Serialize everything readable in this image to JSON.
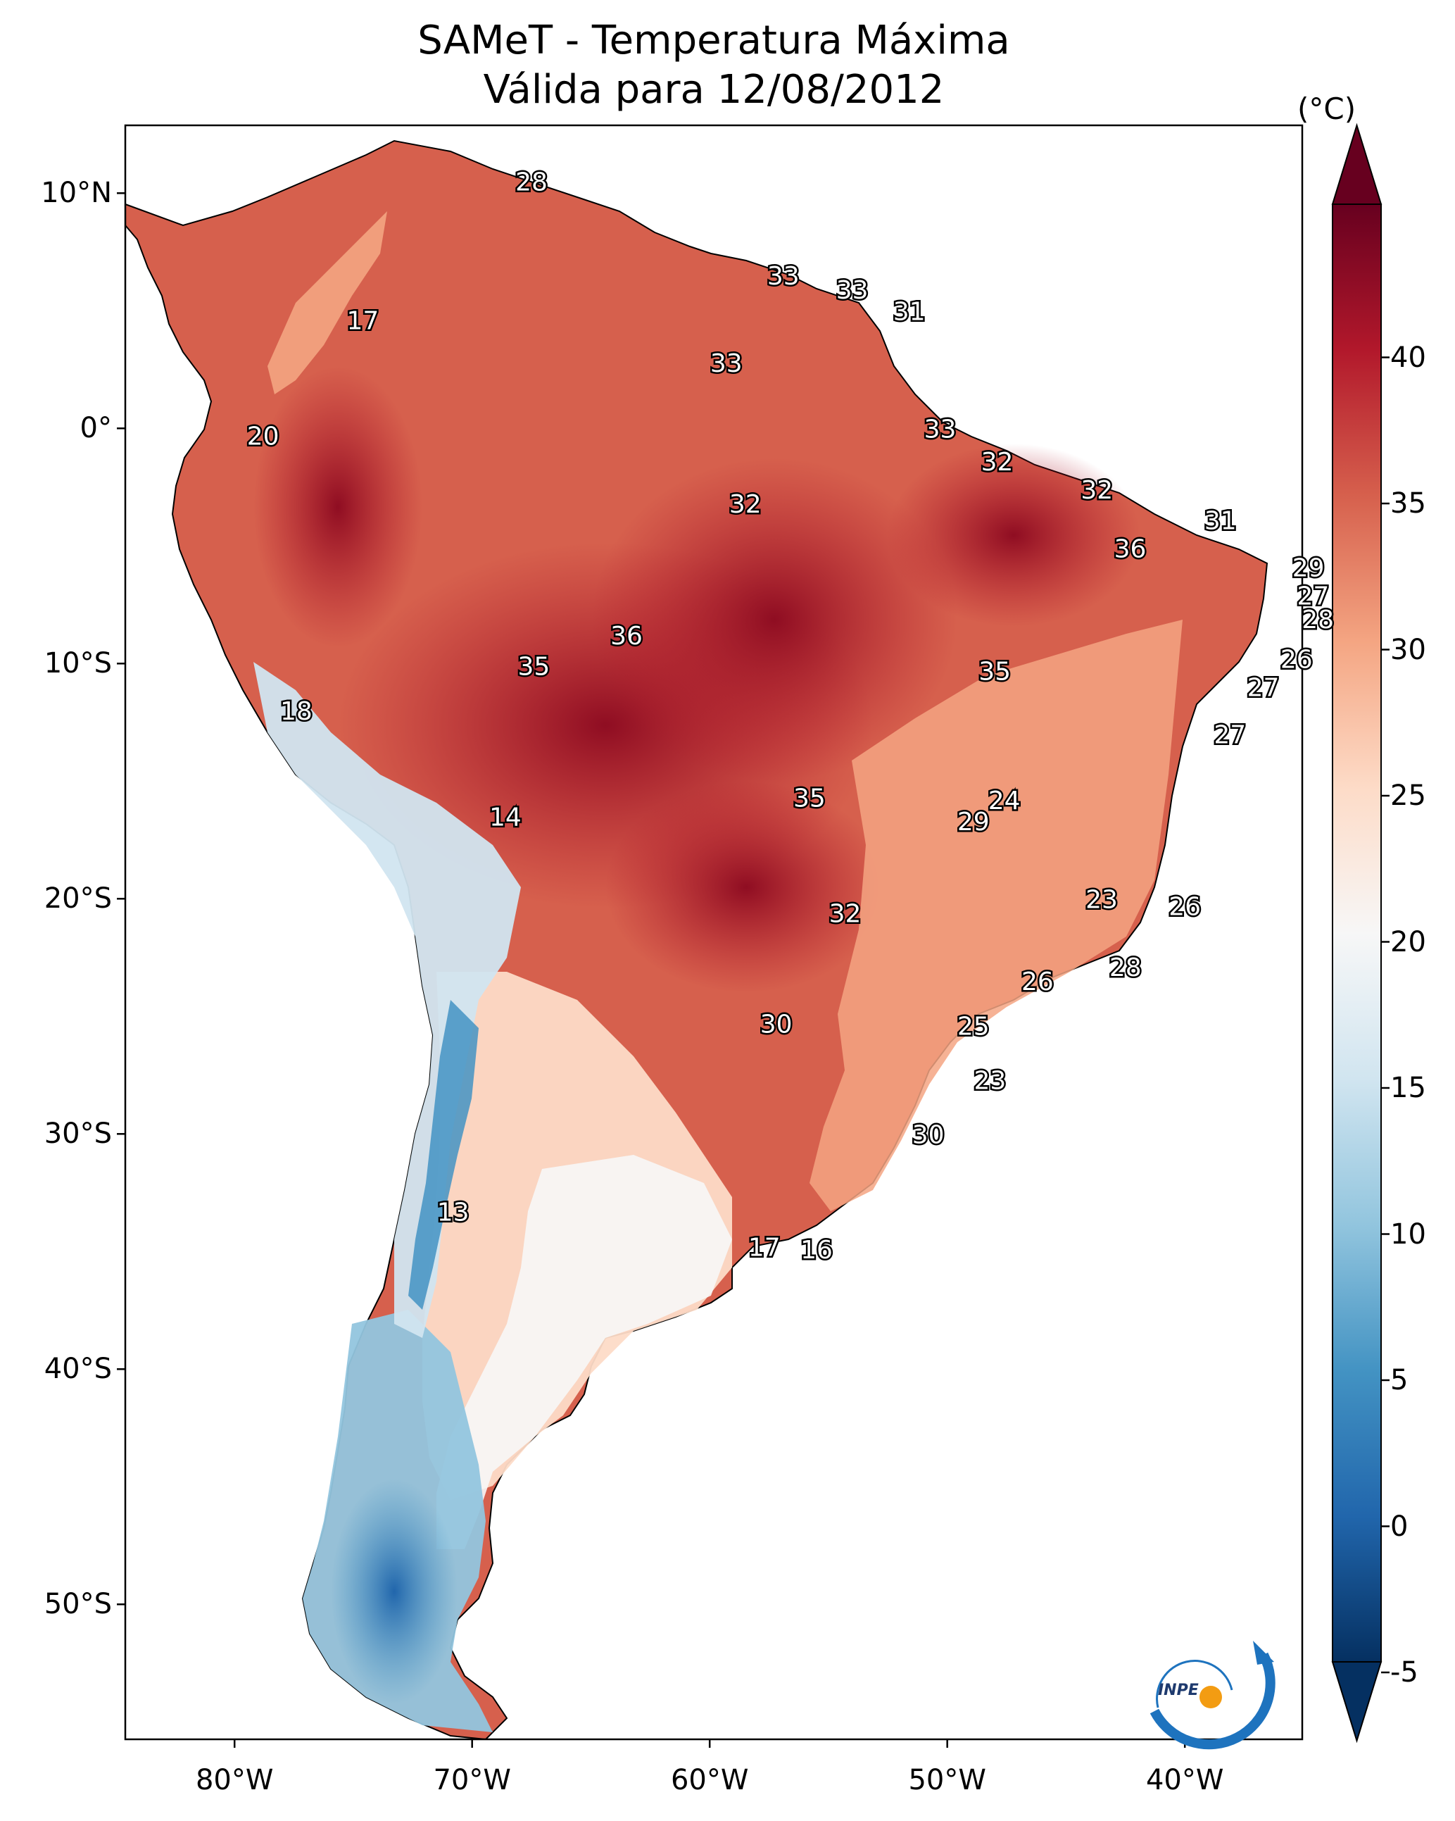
{
  "title": {
    "line1": "SAMeT - Temperatura Máxima",
    "line2": "Válida para 12/08/2012"
  },
  "colorbar": {
    "unit": "(°C)",
    "ticks": [
      "-5",
      "0",
      "5",
      "10",
      "15",
      "20",
      "25",
      "30",
      "35",
      "40"
    ],
    "range": [
      -5,
      40
    ],
    "extend": "both",
    "colormap": "RdBu_r",
    "colors": [
      "#053061",
      "#2166ac",
      "#4393c3",
      "#92c5de",
      "#d1e5f0",
      "#f7f7f7",
      "#fddbc7",
      "#f4a582",
      "#d6604d",
      "#b2182b",
      "#67001f"
    ]
  },
  "axes": {
    "lat_ticks": [
      "10°N",
      "0°",
      "10°S",
      "20°S",
      "30°S",
      "40°S",
      "50°S"
    ],
    "lon_ticks": [
      "80°W",
      "70°W",
      "60°W",
      "50°W",
      "40°W"
    ]
  },
  "contour_labels": [
    {
      "value": "28",
      "lon": -67.5,
      "lat": 10.5
    },
    {
      "value": "17",
      "lon": -74.6,
      "lat": 4.6
    },
    {
      "value": "33",
      "lon": -56.9,
      "lat": 6.5
    },
    {
      "value": "33",
      "lon": -54.0,
      "lat": 5.9
    },
    {
      "value": "31",
      "lon": -51.6,
      "lat": 5.0
    },
    {
      "value": "33",
      "lon": -59.3,
      "lat": 2.8
    },
    {
      "value": "20",
      "lon": -78.8,
      "lat": -0.3
    },
    {
      "value": "33",
      "lon": -50.3,
      "lat": 0.0
    },
    {
      "value": "32",
      "lon": -47.9,
      "lat": -1.4
    },
    {
      "value": "32",
      "lon": -58.5,
      "lat": -3.2
    },
    {
      "value": "32",
      "lon": -43.7,
      "lat": -2.6
    },
    {
      "value": "31",
      "lon": -38.5,
      "lat": -3.9
    },
    {
      "value": "36",
      "lon": -42.3,
      "lat": -5.1
    },
    {
      "value": "29",
      "lon": -34.8,
      "lat": -5.9
    },
    {
      "value": "27",
      "lon": -34.6,
      "lat": -7.1
    },
    {
      "value": "28",
      "lon": -34.4,
      "lat": -8.1
    },
    {
      "value": "36",
      "lon": -63.5,
      "lat": -8.8
    },
    {
      "value": "35",
      "lon": -67.4,
      "lat": -10.1
    },
    {
      "value": "35",
      "lon": -48.0,
      "lat": -10.3
    },
    {
      "value": "26",
      "lon": -35.3,
      "lat": -9.8
    },
    {
      "value": "27",
      "lon": -36.7,
      "lat": -11.0
    },
    {
      "value": "18",
      "lon": -77.4,
      "lat": -12.0
    },
    {
      "value": "27",
      "lon": -38.1,
      "lat": -13.0
    },
    {
      "value": "35",
      "lon": -55.8,
      "lat": -15.7
    },
    {
      "value": "24",
      "lon": -47.6,
      "lat": -15.8
    },
    {
      "value": "29",
      "lon": -48.9,
      "lat": -16.7
    },
    {
      "value": "14",
      "lon": -68.6,
      "lat": -16.5
    },
    {
      "value": "23",
      "lon": -43.5,
      "lat": -20.0
    },
    {
      "value": "26",
      "lon": -40.0,
      "lat": -20.3
    },
    {
      "value": "32",
      "lon": -54.3,
      "lat": -20.6
    },
    {
      "value": "28",
      "lon": -42.5,
      "lat": -22.9
    },
    {
      "value": "26",
      "lon": -46.2,
      "lat": -23.5
    },
    {
      "value": "30",
      "lon": -57.2,
      "lat": -25.3
    },
    {
      "value": "25",
      "lon": -48.9,
      "lat": -25.4
    },
    {
      "value": "23",
      "lon": -48.2,
      "lat": -27.7
    },
    {
      "value": "30",
      "lon": -50.8,
      "lat": -30.0
    },
    {
      "value": "13",
      "lon": -70.8,
      "lat": -33.3
    },
    {
      "value": "17",
      "lon": -57.7,
      "lat": -34.8
    },
    {
      "value": "16",
      "lon": -55.5,
      "lat": -34.9
    }
  ],
  "logo": {
    "text": "INPE"
  }
}
